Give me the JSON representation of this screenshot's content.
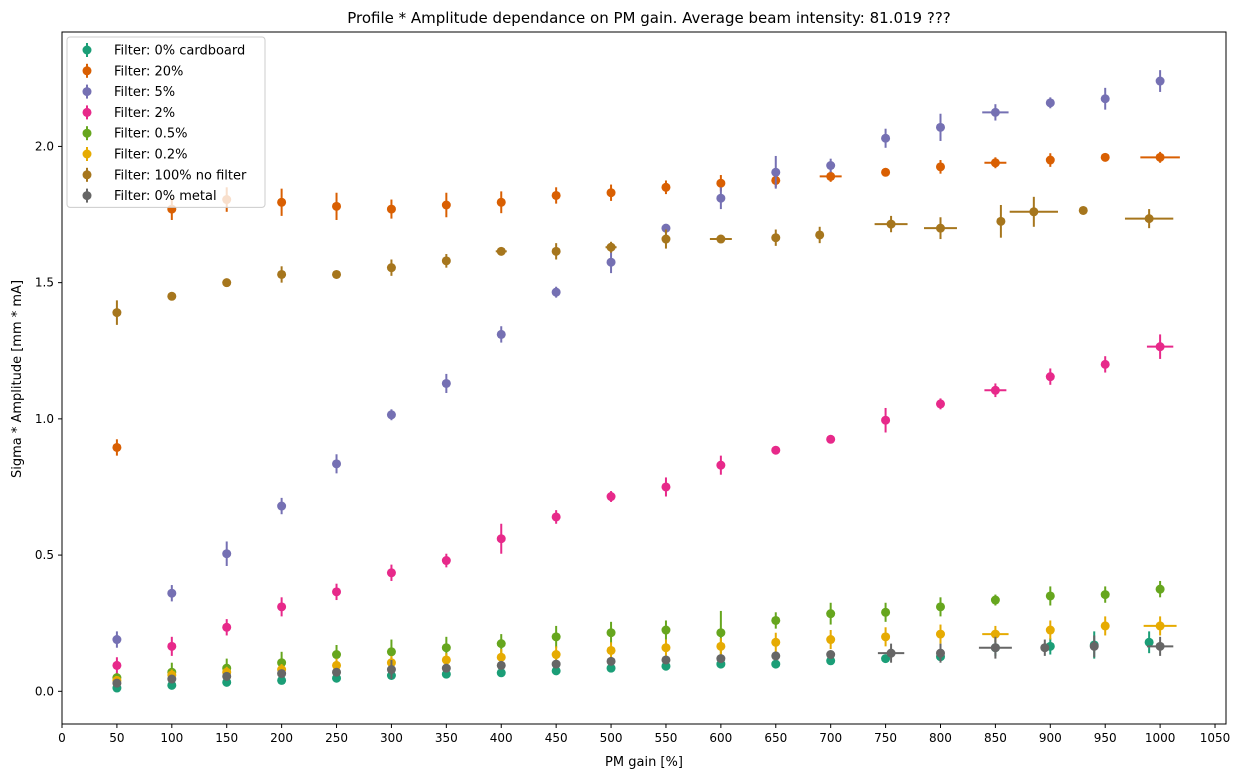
{
  "chart_data": {
    "type": "scatter",
    "title": "Profile * Amplitude dependance on PM gain. Average beam intensity: 81.019 ???",
    "xlabel": "PM gain [%]",
    "ylabel": "Sigma * Amplitude [mm * mA]",
    "xlim": [
      0,
      1060
    ],
    "ylim": [
      -0.12,
      2.42
    ],
    "xticks": [
      0,
      50,
      100,
      150,
      200,
      250,
      300,
      350,
      400,
      450,
      500,
      550,
      600,
      650,
      700,
      750,
      800,
      850,
      900,
      950,
      1000,
      1050
    ],
    "yticks": [
      0.0,
      0.5,
      1.0,
      1.5,
      2.0
    ],
    "ytick_labels": [
      "0.0",
      "0.5",
      "1.0",
      "1.5",
      "2.0"
    ],
    "grid": false,
    "legend_position": "top-left",
    "series": [
      {
        "name": "Filter: 0% cardboard",
        "color": "#1b9e77",
        "x": [
          50,
          100,
          150,
          200,
          250,
          300,
          350,
          400,
          450,
          500,
          550,
          600,
          650,
          700,
          750,
          800,
          850,
          900,
          940,
          990
        ],
        "y": [
          0.012,
          0.022,
          0.033,
          0.04,
          0.048,
          0.058,
          0.063,
          0.068,
          0.075,
          0.085,
          0.092,
          0.1,
          0.1,
          0.112,
          0.12,
          0.127,
          0.16,
          0.165,
          0.17,
          0.18
        ],
        "yerr": [
          0.012,
          0.012,
          0.012,
          0.012,
          0.012,
          0.012,
          0.015,
          0.015,
          0.015,
          0.015,
          0.015,
          0.015,
          0.015,
          0.015,
          0.015,
          0.02,
          0.03,
          0.03,
          0.05,
          0.04
        ],
        "xerr": [
          0,
          0,
          0,
          0,
          0,
          0,
          0,
          0,
          0,
          0,
          0,
          0,
          0,
          0,
          0,
          0,
          0,
          0,
          0,
          0
        ]
      },
      {
        "name": "Filter: 20%",
        "color": "#d95f02",
        "x": [
          50,
          100,
          150,
          200,
          250,
          300,
          350,
          400,
          450,
          500,
          550,
          600,
          650,
          700,
          750,
          800,
          850,
          900,
          950,
          1000
        ],
        "y": [
          0.895,
          1.77,
          1.805,
          1.795,
          1.78,
          1.77,
          1.785,
          1.795,
          1.82,
          1.83,
          1.85,
          1.865,
          1.875,
          1.89,
          1.905,
          1.925,
          1.94,
          1.95,
          1.96,
          1.96
        ],
        "yerr": [
          0.03,
          0.04,
          0.045,
          0.05,
          0.05,
          0.035,
          0.045,
          0.04,
          0.03,
          0.03,
          0.025,
          0.03,
          0.025,
          0.02,
          0.01,
          0.025,
          0.02,
          0.025,
          0.01,
          0.02
        ],
        "xerr": [
          0,
          0,
          0,
          0,
          0,
          0,
          0,
          0,
          0,
          0,
          0,
          0,
          0,
          10,
          0,
          0,
          10,
          0,
          0,
          18
        ]
      },
      {
        "name": "Filter: 5%",
        "color": "#7570b3",
        "x": [
          50,
          100,
          150,
          200,
          250,
          300,
          350,
          400,
          450,
          500,
          550,
          600,
          650,
          700,
          750,
          800,
          850,
          900,
          950,
          1000
        ],
        "y": [
          0.19,
          0.36,
          0.505,
          0.68,
          0.835,
          1.015,
          1.13,
          1.31,
          1.465,
          1.575,
          1.7,
          1.81,
          1.905,
          1.93,
          2.03,
          2.07,
          2.125,
          2.16,
          2.175,
          2.24
        ],
        "yerr": [
          0.03,
          0.03,
          0.045,
          0.03,
          0.035,
          0.02,
          0.035,
          0.03,
          0.02,
          0.04,
          0.015,
          0.04,
          0.06,
          0.025,
          0.035,
          0.05,
          0.03,
          0.02,
          0.04,
          0.04
        ],
        "xerr": [
          0,
          0,
          0,
          0,
          0,
          0,
          0,
          0,
          0,
          0,
          0,
          0,
          0,
          0,
          0,
          0,
          12,
          0,
          0,
          0
        ]
      },
      {
        "name": "Filter: 2%",
        "color": "#e7298a",
        "x": [
          50,
          100,
          150,
          200,
          250,
          300,
          350,
          400,
          450,
          500,
          550,
          600,
          650,
          700,
          750,
          800,
          850,
          900,
          950,
          1000
        ],
        "y": [
          0.095,
          0.165,
          0.235,
          0.31,
          0.365,
          0.435,
          0.48,
          0.56,
          0.64,
          0.715,
          0.75,
          0.83,
          0.885,
          0.925,
          0.995,
          1.055,
          1.105,
          1.155,
          1.2,
          1.265
        ],
        "yerr": [
          0.03,
          0.035,
          0.03,
          0.035,
          0.03,
          0.03,
          0.025,
          0.055,
          0.025,
          0.02,
          0.035,
          0.035,
          0.01,
          0.005,
          0.045,
          0.02,
          0.025,
          0.03,
          0.03,
          0.045
        ],
        "xerr": [
          0,
          0,
          0,
          0,
          0,
          0,
          0,
          0,
          0,
          0,
          0,
          0,
          0,
          0,
          0,
          0,
          10,
          0,
          0,
          12
        ]
      },
      {
        "name": "Filter: 0.5%",
        "color": "#66a61e",
        "x": [
          50,
          100,
          150,
          200,
          250,
          300,
          350,
          400,
          450,
          500,
          550,
          600,
          650,
          700,
          750,
          800,
          850,
          900,
          950,
          1000
        ],
        "y": [
          0.05,
          0.07,
          0.085,
          0.105,
          0.135,
          0.145,
          0.16,
          0.175,
          0.2,
          0.215,
          0.225,
          0.215,
          0.26,
          0.285,
          0.29,
          0.31,
          0.335,
          0.35,
          0.355,
          0.375
        ],
        "yerr": [
          0.015,
          0.035,
          0.035,
          0.04,
          0.035,
          0.045,
          0.04,
          0.035,
          0.04,
          0.04,
          0.035,
          0.08,
          0.03,
          0.04,
          0.035,
          0.035,
          0.02,
          0.035,
          0.03,
          0.03
        ],
        "xerr": [
          0,
          0,
          0,
          0,
          0,
          0,
          0,
          0,
          0,
          0,
          0,
          0,
          0,
          0,
          0,
          0,
          0,
          0,
          0,
          0
        ]
      },
      {
        "name": "Filter: 0.2%",
        "color": "#e6ab02",
        "x": [
          50,
          100,
          150,
          200,
          250,
          300,
          350,
          400,
          450,
          500,
          550,
          600,
          650,
          700,
          750,
          800,
          850,
          900,
          950,
          1000
        ],
        "y": [
          0.04,
          0.06,
          0.07,
          0.08,
          0.095,
          0.105,
          0.115,
          0.125,
          0.135,
          0.15,
          0.16,
          0.165,
          0.18,
          0.19,
          0.2,
          0.21,
          0.21,
          0.225,
          0.24,
          0.24
        ],
        "yerr": [
          0.015,
          0.02,
          0.02,
          0.02,
          0.025,
          0.025,
          0.025,
          0.03,
          0.03,
          0.03,
          0.03,
          0.03,
          0.035,
          0.035,
          0.035,
          0.035,
          0.03,
          0.035,
          0.035,
          0.035
        ],
        "xerr": [
          0,
          0,
          0,
          0,
          0,
          0,
          0,
          0,
          0,
          0,
          0,
          0,
          0,
          0,
          0,
          0,
          12,
          0,
          0,
          15
        ]
      },
      {
        "name": "Filter: 100% no filter",
        "color": "#a6761d",
        "x": [
          50,
          100,
          150,
          200,
          250,
          300,
          350,
          400,
          450,
          500,
          550,
          600,
          650,
          690,
          755,
          800,
          855,
          885,
          930,
          990
        ],
        "y": [
          1.39,
          1.45,
          1.5,
          1.53,
          1.53,
          1.555,
          1.58,
          1.615,
          1.615,
          1.63,
          1.66,
          1.66,
          1.665,
          1.675,
          1.715,
          1.7,
          1.725,
          1.76,
          1.765,
          1.735
        ],
        "yerr": [
          0.045,
          0.01,
          0.01,
          0.03,
          0.01,
          0.03,
          0.025,
          0.01,
          0.03,
          0.02,
          0.035,
          0.005,
          0.03,
          0.03,
          0.03,
          0.04,
          0.06,
          0.055,
          0.005,
          0.035
        ],
        "xerr": [
          0,
          0,
          0,
          0,
          0,
          0,
          0,
          5,
          0,
          5,
          0,
          10,
          0,
          0,
          15,
          15,
          0,
          22,
          0,
          22
        ]
      },
      {
        "name": "Filter: 0% metal",
        "color": "#666666",
        "x": [
          50,
          100,
          150,
          200,
          250,
          300,
          350,
          400,
          450,
          500,
          550,
          600,
          650,
          700,
          755,
          800,
          850,
          895,
          940,
          1000
        ],
        "y": [
          0.03,
          0.045,
          0.055,
          0.065,
          0.07,
          0.08,
          0.085,
          0.095,
          0.1,
          0.11,
          0.115,
          0.12,
          0.13,
          0.135,
          0.14,
          0.14,
          0.16,
          0.16,
          0.165,
          0.165
        ],
        "yerr": [
          0.01,
          0.01,
          0.012,
          0.012,
          0.015,
          0.035,
          0.015,
          0.015,
          0.015,
          0.015,
          0.015,
          0.015,
          0.015,
          0.015,
          0.035,
          0.035,
          0.04,
          0.03,
          0.04,
          0.035
        ],
        "xerr": [
          0,
          0,
          0,
          0,
          0,
          0,
          0,
          0,
          0,
          0,
          0,
          0,
          0,
          0,
          12,
          0,
          15,
          0,
          0,
          12
        ]
      }
    ]
  }
}
